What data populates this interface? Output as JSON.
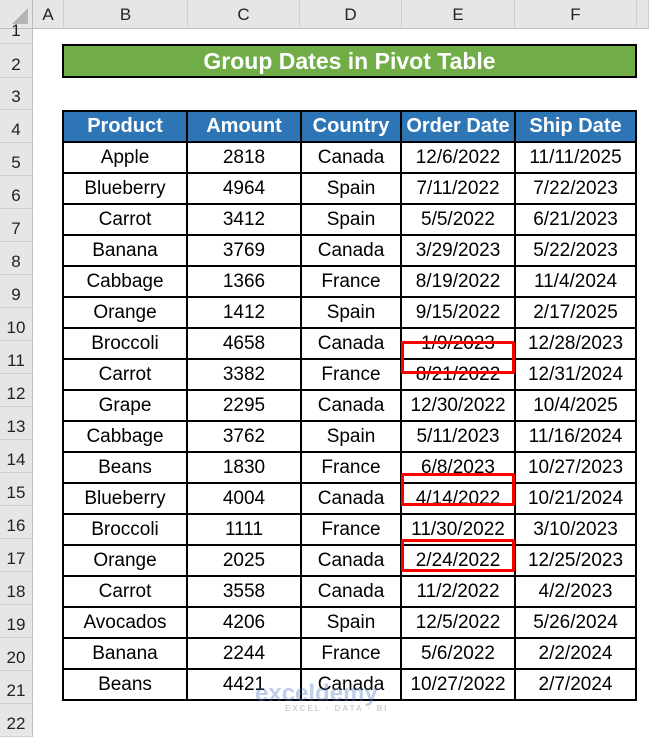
{
  "columns": [
    "A",
    "B",
    "C",
    "D",
    "E",
    "F"
  ],
  "rows": [
    "1",
    "2",
    "3",
    "4",
    "5",
    "6",
    "7",
    "8",
    "9",
    "10",
    "11",
    "12",
    "13",
    "14",
    "15",
    "16",
    "17",
    "18",
    "19",
    "20",
    "21",
    "22"
  ],
  "title": "Group Dates in Pivot Table",
  "headers": [
    "Product",
    "Amount",
    "Country",
    "Order Date",
    "Ship Date"
  ],
  "data": [
    [
      "Apple",
      "2818",
      "Canada",
      "12/6/2022",
      "11/11/2025"
    ],
    [
      "Blueberry",
      "4964",
      "Spain",
      "7/11/2022",
      "7/22/2023"
    ],
    [
      "Carrot",
      "3412",
      "Spain",
      "5/5/2022",
      "6/21/2023"
    ],
    [
      "Banana",
      "3769",
      "Canada",
      "3/29/2023",
      "5/22/2023"
    ],
    [
      "Cabbage",
      "1366",
      "France",
      "8/19/2022",
      "11/4/2024"
    ],
    [
      "Orange",
      "1412",
      "Spain",
      "9/15/2022",
      "2/17/2025"
    ],
    [
      "Broccoli",
      "4658",
      "Canada",
      "1/9/2023",
      "12/28/2023"
    ],
    [
      "Carrot",
      "3382",
      "France",
      "8/21/2022",
      "12/31/2024"
    ],
    [
      "Grape",
      "2295",
      "Canada",
      "12/30/2022",
      "10/4/2025"
    ],
    [
      "Cabbage",
      "3762",
      "Spain",
      "5/11/2023",
      "11/16/2024"
    ],
    [
      "Beans",
      "1830",
      "France",
      "6/8/2023",
      "10/27/2023"
    ],
    [
      "Blueberry",
      "4004",
      "Canada",
      "4/14/2022",
      "10/21/2024"
    ],
    [
      "Broccoli",
      "1111",
      "France",
      "11/30/2022",
      "3/10/2023"
    ],
    [
      "Orange",
      "2025",
      "Canada",
      "2/24/2022",
      "12/25/2023"
    ],
    [
      "Carrot",
      "3558",
      "Canada",
      "11/2/2022",
      "4/2/2023"
    ],
    [
      "Avocados",
      "4206",
      "Spain",
      "12/5/2022",
      "5/26/2024"
    ],
    [
      "Banana",
      "2244",
      "France",
      "5/6/2022",
      "2/2/2024"
    ],
    [
      "Beans",
      "4421",
      "Canada",
      "10/27/2022",
      "2/7/2024"
    ]
  ],
  "highlighted_rows": [
    "11",
    "15",
    "17"
  ],
  "colors": {
    "title_bg": "#70ad47",
    "header_bg": "#2e75b6",
    "highlight": "#ff0000"
  },
  "watermark": {
    "text": "exceldemy",
    "sub": "EXCEL · DATA · BI"
  }
}
